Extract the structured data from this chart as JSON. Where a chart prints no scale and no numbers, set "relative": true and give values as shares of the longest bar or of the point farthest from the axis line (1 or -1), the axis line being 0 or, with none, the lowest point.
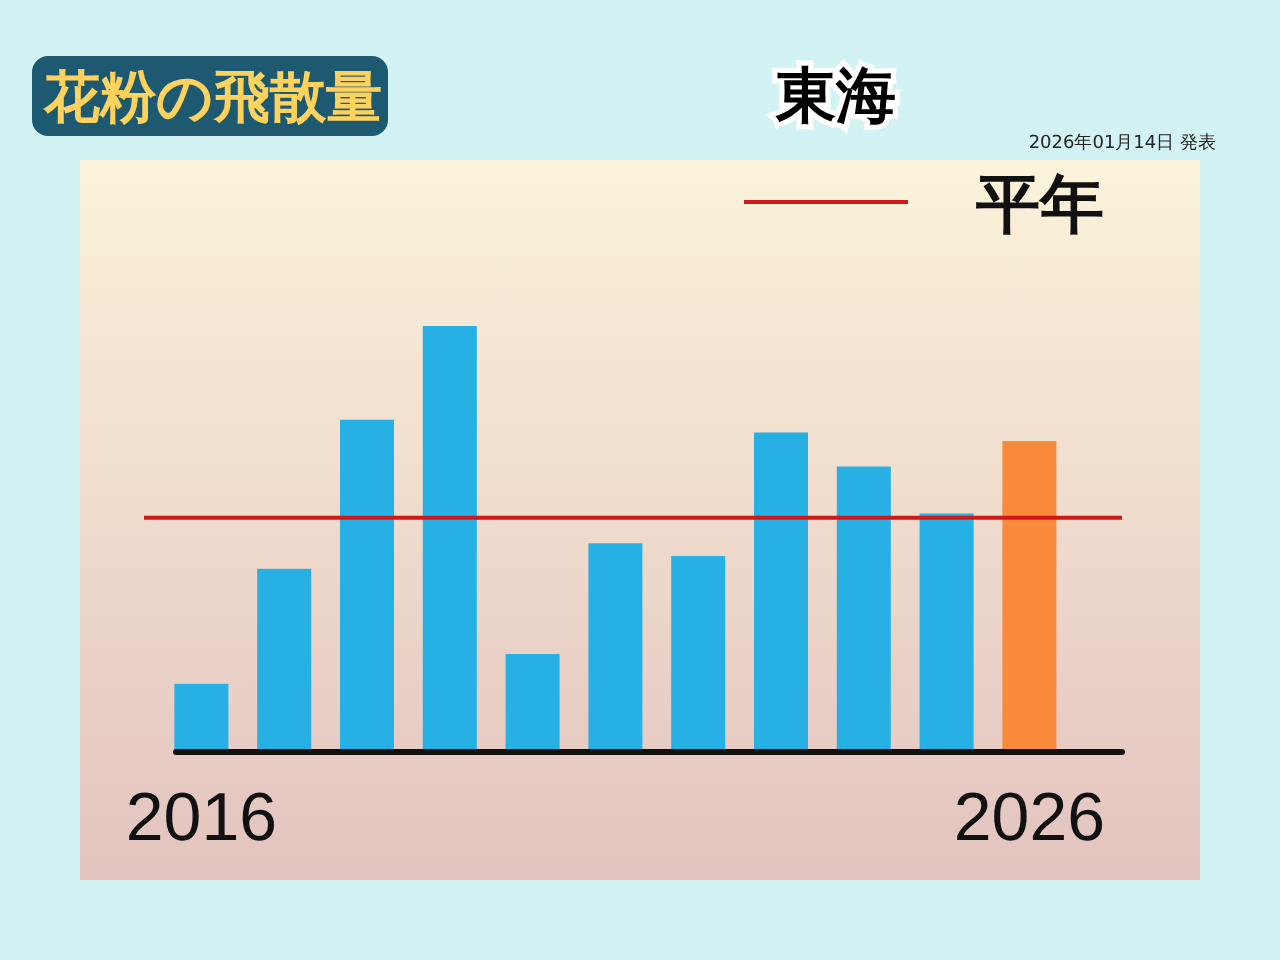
{
  "chart_data": {
    "type": "bar",
    "title": "花粉の飛散量",
    "subtitle": "東海",
    "annotations": [
      "2026年01月14日 発表"
    ],
    "categories": [
      "2016",
      null,
      null,
      null,
      null,
      null,
      null,
      null,
      null,
      null,
      "2026"
    ],
    "values": [
      0.16,
      0.43,
      0.78,
      1,
      0.23,
      0.49,
      0.46,
      0.75,
      0.67,
      0.56,
      0.73
    ],
    "colors": [
      "#26b0e4",
      "#26b0e4",
      "#26b0e4",
      "#26b0e4",
      "#26b0e4",
      "#26b0e4",
      "#26b0e4",
      "#26b0e4",
      "#26b0e4",
      "#26b0e4",
      "#f98a3a"
    ],
    "relative": true,
    "ref_lines": [
      {
        "axis": "y",
        "value": 0.55,
        "label": "平年",
        "color": "#d01818"
      }
    ],
    "legend": "top right"
  }
}
